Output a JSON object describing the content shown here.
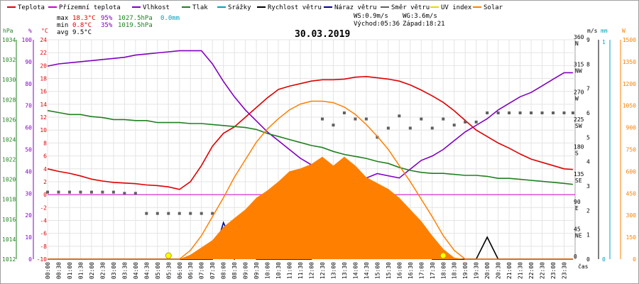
{
  "chart_data": {
    "type": "line",
    "date": "30.03.2019",
    "legend": [
      {
        "name": "Teplota",
        "color": "#e00000"
      },
      {
        "name": "Přízemní teplota",
        "color": "#cc00cc"
      },
      {
        "name": "Vlhkost",
        "color": "#8000c0"
      },
      {
        "name": "Tlak",
        "color": "#208020"
      },
      {
        "name": "Srážky",
        "color": "#00a0c0"
      },
      {
        "name": "Rychlost větru",
        "color": "#000000"
      },
      {
        "name": "Náraz větru",
        "color": "#000090"
      },
      {
        "name": "Směr větru",
        "color": "#606060"
      },
      {
        "name": "UV index",
        "color": "#e8d800"
      },
      {
        "name": "Solar",
        "color": "#ff8000"
      }
    ],
    "stats": {
      "max_label": "max",
      "max_temp": "18.3°C",
      "max_hum": "95%",
      "max_press": "1027.5hPa",
      "rain": "0.0mm",
      "min_label": "min",
      "min_temp": "0.8°C",
      "min_hum": "35%",
      "min_press": "1019.5hPa",
      "avg_label": "avg",
      "avg_temp": "9.5°C"
    },
    "wind_info": {
      "ws": "WS:0.9m/s",
      "wg": "WG:3.6m/s",
      "sunrise": "Východ:05:36",
      "sunset": "Západ:18:21"
    },
    "axes": {
      "hpa_unit": "hPa",
      "pct_unit": "%",
      "temp_unit": "°C",
      "dir_unit": "",
      "ms_unit": "m/s",
      "mm_unit": "mm",
      "w_unit": "W",
      "time_label": "čas",
      "hpa_ticks": [
        "1034",
        "1032",
        "1030",
        "1028",
        "1026",
        "1024",
        "1022",
        "1020",
        "1018",
        "1016",
        "1014",
        "1012"
      ],
      "pct_ticks": [
        "100",
        "90",
        "80",
        "70",
        "60",
        "50",
        "40",
        "30",
        "20",
        "10",
        "0"
      ],
      "temp_ticks": [
        "24",
        "22",
        "20",
        "18",
        "16",
        "14",
        "12",
        "10",
        "8",
        "6",
        "4",
        "2",
        "0",
        "-2",
        "-4",
        "-6",
        "-8",
        "-10"
      ],
      "dir_ticks": [
        {
          "deg": "360",
          "dir": "N"
        },
        {
          "deg": "315",
          "dir": "NW"
        },
        {
          "deg": "270",
          "dir": "W"
        },
        {
          "deg": "225",
          "dir": "SW"
        },
        {
          "deg": "180",
          "dir": "S"
        },
        {
          "deg": "135",
          "dir": "SE"
        },
        {
          "deg": "90",
          "dir": "E"
        },
        {
          "deg": "45",
          "dir": "NE"
        },
        {
          "deg": "0",
          "dir": ""
        }
      ],
      "ms_ticks": [
        "9",
        "8",
        "7",
        "6",
        "5",
        "4",
        "3",
        "2",
        "1",
        "0"
      ],
      "mm_ticks": [
        "1",
        "0"
      ],
      "w_ticks": [
        "1500",
        "1350",
        "1200",
        "1050",
        "900",
        "750",
        "600",
        "450",
        "300",
        "150",
        "0"
      ],
      "time_ticks": [
        "00:00",
        "00:30",
        "01:00",
        "01:30",
        "02:00",
        "02:30",
        "03:00",
        "03:30",
        "04:00",
        "04:30",
        "05:00",
        "05:30",
        "06:00",
        "06:30",
        "07:00",
        "07:30",
        "08:00",
        "08:30",
        "09:00",
        "09:30",
        "10:00",
        "10:30",
        "11:00",
        "11:30",
        "12:00",
        "12:30",
        "13:00",
        "13:30",
        "14:00",
        "14:30",
        "15:00",
        "15:30",
        "16:00",
        "16:30",
        "17:00",
        "17:30",
        "18:00",
        "18:30",
        "19:00",
        "19:30",
        "20:00",
        "20:30",
        "21:00",
        "21:30",
        "22:00",
        "22:30",
        "23:00",
        "23:30"
      ]
    },
    "x_hours": [
      0,
      0.5,
      1,
      1.5,
      2,
      2.5,
      3,
      3.5,
      4,
      4.5,
      5,
      5.5,
      6,
      6.5,
      7,
      7.5,
      8,
      8.5,
      9,
      9.5,
      10,
      10.5,
      11,
      11.5,
      12,
      12.5,
      13,
      13.5,
      14,
      14.5,
      15,
      15.5,
      16,
      16.5,
      17,
      17.5,
      18,
      18.5,
      19,
      19.5,
      20,
      20.5,
      21,
      21.5,
      22,
      22.5,
      23,
      23.5,
      23.9
    ],
    "series": [
      {
        "name": "Teplota",
        "axis": "temp",
        "color": "#e00000",
        "values": [
          4,
          3.6,
          3.3,
          2.9,
          2.4,
          2.1,
          1.9,
          1.8,
          1.7,
          1.5,
          1.4,
          1.2,
          0.8,
          2,
          4.5,
          7.5,
          9.5,
          10.5,
          12,
          13.5,
          15,
          16.3,
          16.8,
          17.2,
          17.6,
          17.8,
          17.8,
          17.9,
          18.2,
          18.3,
          18.1,
          17.9,
          17.6,
          17,
          16.2,
          15.3,
          14.3,
          13,
          11.5,
          10,
          9,
          8,
          7.2,
          6.3,
          5.5,
          5,
          4.5,
          4,
          3.9
        ]
      },
      {
        "name": "Přízemní teplota",
        "axis": "temp",
        "color": "#cc00cc",
        "values": [
          0,
          0,
          0,
          0,
          0,
          0,
          0,
          0,
          0,
          0,
          0,
          0,
          0,
          0,
          0,
          0,
          0,
          0,
          0,
          0,
          0,
          0,
          0,
          0,
          0,
          0,
          0,
          0,
          0,
          0,
          0,
          0,
          0,
          0,
          0,
          0,
          0,
          0,
          0,
          0,
          0,
          0,
          0,
          0,
          0,
          0,
          0,
          0,
          0
        ]
      },
      {
        "name": "Vlhkost",
        "axis": "pct",
        "color": "#8000c0",
        "values": [
          88,
          89,
          89.5,
          90,
          90.5,
          91,
          91.5,
          92,
          93,
          93.5,
          94,
          94.5,
          95,
          95,
          95,
          89,
          81,
          74,
          68,
          63,
          58,
          54,
          50,
          46,
          43,
          41,
          39,
          37,
          36,
          37,
          39,
          38,
          37,
          41,
          45,
          47,
          50,
          54,
          58,
          61,
          64,
          68,
          71,
          74,
          76,
          79,
          82,
          85,
          85
        ]
      },
      {
        "name": "Tlak",
        "axis": "hpa",
        "color": "#208020",
        "values": [
          1026.9,
          1026.7,
          1026.5,
          1026.5,
          1026.3,
          1026.2,
          1026.0,
          1026.0,
          1025.9,
          1025.9,
          1025.7,
          1025.7,
          1025.7,
          1025.6,
          1025.6,
          1025.5,
          1025.4,
          1025.3,
          1025.2,
          1025.0,
          1024.6,
          1024.3,
          1024.0,
          1023.7,
          1023.4,
          1023.2,
          1022.8,
          1022.5,
          1022.3,
          1022.1,
          1021.8,
          1021.6,
          1021.2,
          1020.9,
          1020.7,
          1020.6,
          1020.6,
          1020.5,
          1020.4,
          1020.4,
          1020.3,
          1020.1,
          1020.1,
          1020.0,
          1019.9,
          1019.8,
          1019.7,
          1019.6,
          1019.5
        ]
      },
      {
        "name": "Rychlost větru",
        "axis": "ms",
        "color": "#000000",
        "values": [
          0,
          0,
          0,
          0,
          0,
          0,
          0,
          0,
          0,
          0,
          0,
          0,
          0,
          0,
          0,
          0,
          0.7,
          0,
          0.7,
          0,
          0,
          0,
          0,
          0,
          0,
          0.7,
          0.9,
          0.7,
          0.9,
          0.7,
          0.9,
          0.7,
          0.9,
          0.7,
          0.7,
          0,
          0,
          0,
          0,
          0,
          0.9,
          0,
          0,
          0,
          0,
          0,
          0,
          0,
          0
        ]
      },
      {
        "name": "Náraz větru",
        "axis": "ms",
        "color": "#000090",
        "values": [
          0,
          0,
          0,
          0,
          0,
          0,
          0,
          0,
          0,
          0,
          0,
          0,
          0,
          0,
          0,
          0,
          1.5,
          0.5,
          1,
          0,
          0,
          0,
          0,
          0,
          0,
          1.2,
          3.6,
          1.8,
          1.3,
          1,
          2.4,
          1.6,
          2.4,
          1.4,
          1.2,
          0,
          0,
          0,
          0,
          0,
          0,
          0,
          0,
          0,
          0,
          0,
          0,
          0,
          0
        ]
      },
      {
        "name": "Směr větru",
        "axis": "dir",
        "color": "#606060",
        "style": "dots",
        "values": [
          110,
          110,
          110,
          110,
          110,
          110,
          110,
          108,
          108,
          75,
          75,
          75,
          75,
          75,
          75,
          75,
          50,
          50,
          50,
          50,
          55,
          55,
          55,
          55,
          55,
          230,
          220,
          240,
          230,
          230,
          200,
          215,
          235,
          215,
          230,
          215,
          230,
          220,
          225,
          225,
          240,
          240,
          240,
          240,
          240,
          240,
          240,
          240,
          240
        ]
      },
      {
        "name": "Solar",
        "axis": "w",
        "color": "#ff8000",
        "style": "area",
        "values": [
          0,
          0,
          0,
          0,
          0,
          0,
          0,
          0,
          0,
          0,
          0,
          0,
          0,
          30,
          80,
          130,
          220,
          280,
          340,
          420,
          470,
          530,
          600,
          620,
          650,
          700,
          640,
          700,
          640,
          560,
          520,
          480,
          420,
          340,
          260,
          160,
          70,
          10,
          0,
          0,
          0,
          0,
          0,
          0,
          0,
          0,
          0,
          0,
          0
        ]
      },
      {
        "name": "Solar max",
        "axis": "w",
        "color": "#ff8000",
        "style": "line",
        "values": [
          0,
          0,
          0,
          0,
          0,
          0,
          0,
          0,
          0,
          0,
          0,
          0,
          0,
          60,
          160,
          290,
          420,
          560,
          680,
          800,
          890,
          960,
          1020,
          1060,
          1080,
          1080,
          1070,
          1040,
          990,
          920,
          840,
          750,
          640,
          530,
          410,
          290,
          160,
          60,
          0,
          0,
          0,
          0,
          0,
          0,
          0,
          0,
          0,
          0,
          0
        ]
      }
    ],
    "uv_markers": [
      5.5,
      18.0
    ],
    "ranges": {
      "temp": [
        -10,
        24
      ],
      "pct": [
        0,
        100
      ],
      "hpa": [
        1012,
        1034
      ],
      "ms": [
        0,
        9
      ],
      "dir": [
        0,
        360
      ],
      "w": [
        0,
        1500
      ]
    }
  }
}
